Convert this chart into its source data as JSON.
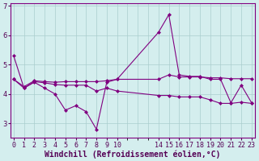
{
  "xlabel": "Windchill (Refroidissement éolien,°C)",
  "background_color": "#d4eeee",
  "line_color": "#800080",
  "grid_color": "#aacece",
  "x_ticks": [
    0,
    1,
    2,
    3,
    4,
    5,
    6,
    7,
    8,
    9,
    10,
    14,
    15,
    16,
    17,
    18,
    19,
    20,
    21,
    22,
    23
  ],
  "ylim": [
    2.5,
    7.1
  ],
  "xlim": [
    -0.3,
    23.3
  ],
  "line1_x": [
    0,
    1,
    2,
    3,
    4,
    5,
    6,
    7,
    8,
    9,
    10,
    14,
    15,
    16,
    17,
    18,
    19,
    20,
    21,
    22,
    23
  ],
  "line1_y": [
    5.3,
    4.2,
    4.4,
    4.2,
    4.0,
    3.45,
    3.6,
    3.4,
    2.8,
    4.4,
    4.5,
    6.1,
    6.7,
    4.65,
    4.6,
    4.6,
    4.5,
    4.5,
    3.7,
    4.3,
    3.7
  ],
  "line2_x": [
    0,
    1,
    2,
    3,
    4,
    5,
    6,
    7,
    8,
    9,
    10,
    14,
    15,
    16,
    17,
    18,
    19,
    20,
    21,
    22,
    23
  ],
  "line2_y": [
    4.5,
    4.25,
    4.45,
    4.42,
    4.4,
    4.42,
    4.42,
    4.42,
    4.42,
    4.45,
    4.5,
    4.5,
    4.65,
    4.58,
    4.58,
    4.58,
    4.55,
    4.55,
    4.52,
    4.52,
    4.52
  ],
  "line3_x": [
    0,
    1,
    2,
    3,
    4,
    5,
    6,
    7,
    8,
    9,
    10,
    14,
    15,
    16,
    17,
    18,
    19,
    20,
    21,
    22,
    23
  ],
  "line3_y": [
    4.5,
    4.2,
    4.42,
    4.38,
    4.32,
    4.3,
    4.3,
    4.3,
    4.1,
    4.2,
    4.1,
    3.95,
    3.95,
    3.9,
    3.9,
    3.9,
    3.8,
    3.68,
    3.68,
    3.72,
    3.68
  ],
  "marker": "D",
  "marker_size": 2.0,
  "line_width": 0.8,
  "tick_fontsize": 6,
  "xlabel_fontsize": 7
}
